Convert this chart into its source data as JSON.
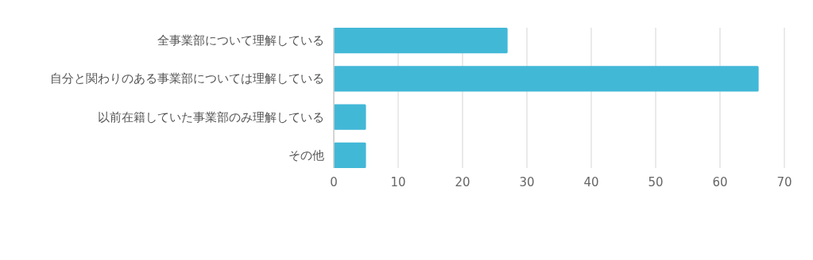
{
  "chart_data": {
    "type": "bar",
    "orientation": "horizontal",
    "categories": [
      "全事業部について理解している",
      "自分と関わりのある事業部については理解している",
      "以前在籍していた事業部のみ理解している",
      "その他"
    ],
    "values": [
      27,
      66,
      5,
      5
    ],
    "color": "#42b8d7",
    "xlim": [
      0,
      70
    ],
    "xticks": [
      0,
      10,
      20,
      30,
      40,
      50,
      60,
      70
    ],
    "grid": "x"
  }
}
